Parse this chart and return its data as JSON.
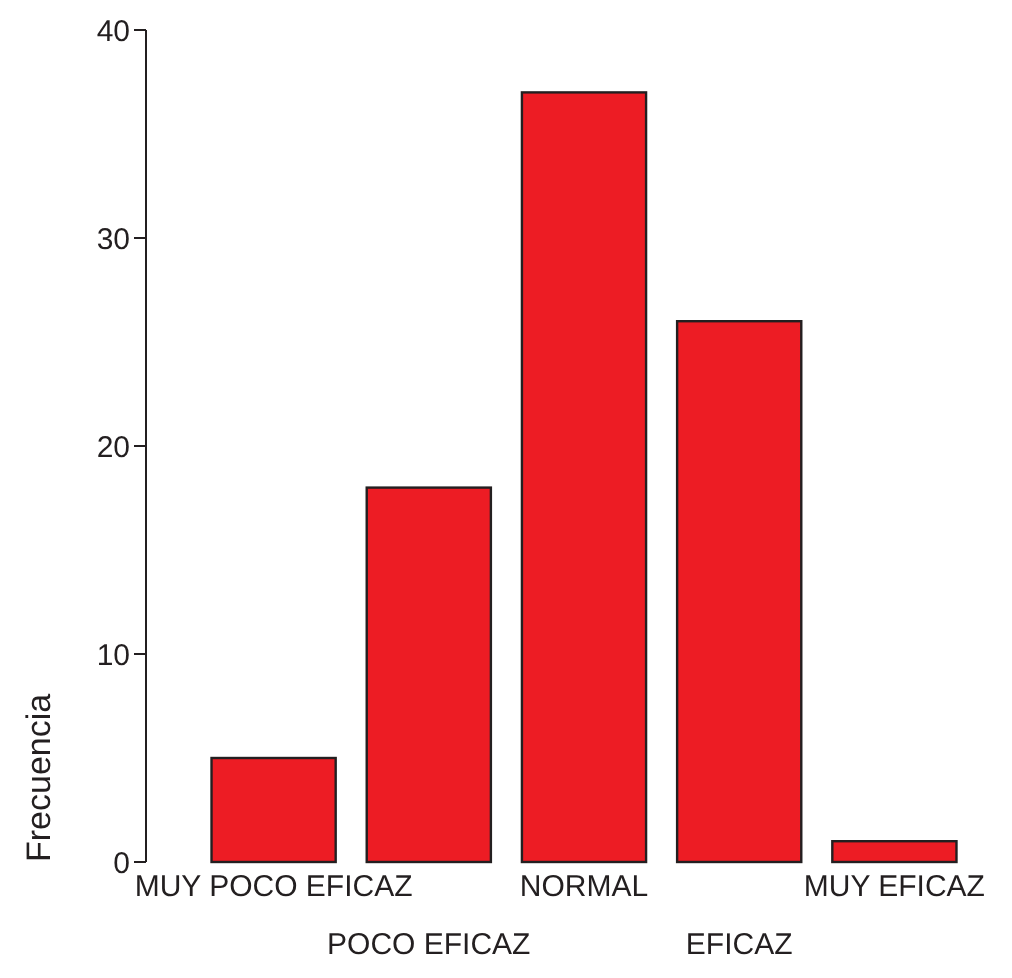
{
  "chart_data": {
    "type": "bar",
    "ylabel": "Frecuencia",
    "categories": [
      "MUY POCO EFICAZ",
      "POCO EFICAZ",
      "NORMAL",
      "EFICAZ",
      "MUY EFICAZ"
    ],
    "values": [
      5,
      18,
      37,
      26,
      1
    ],
    "color": "#ed1c24",
    "ylim": [
      0,
      40
    ],
    "yticks": [
      0,
      10,
      20,
      30,
      40
    ],
    "grid": false
  }
}
